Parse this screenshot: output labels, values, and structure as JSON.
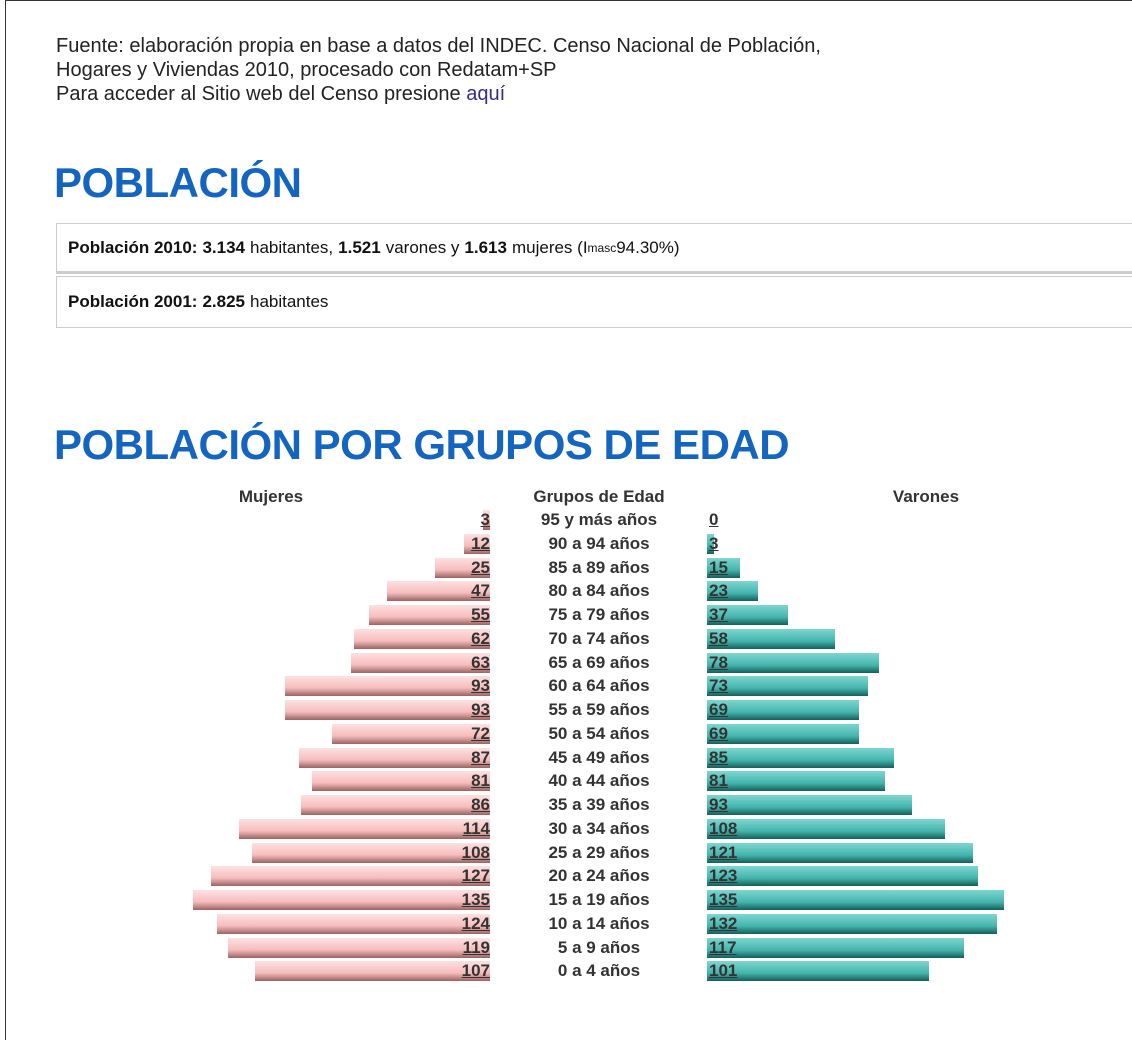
{
  "source": {
    "line1": "Fuente: elaboración propia en base a datos del INDEC. Censo Nacional de Población,",
    "line2": "Hogares y Viviendas 2010, procesado con Redatam+SP",
    "line3": "Para acceder al Sitio web del Censo presione ",
    "link": "aquí"
  },
  "heading1": "POBLACIÓN",
  "box": {
    "row1": {
      "label": "Población 2010:",
      "total": "3.134",
      "t1": "habitantes,",
      "men": "1.521",
      "t2": "varones y",
      "women": "1.613",
      "t3": "mujeres (I",
      "sub": "masc",
      "t4": "94.30%)"
    },
    "row2": {
      "label": "Población 2001:",
      "total": "2.825",
      "t1": "habitantes"
    }
  },
  "heading2": "POBLACIÓN POR GRUPOS DE EDAD",
  "pyramid": {
    "left_title": "Mujeres",
    "center_title": "Grupos de Edad",
    "right_title": "Varones",
    "groups": [
      "95 y más años",
      "90 a 94 años",
      "85 a 89 años",
      "80 a 84 años",
      "75 a 79 años",
      "70 a 74 años",
      "65 a 69 años",
      "60 a 64 años",
      "55 a 59 años",
      "50 a 54 años",
      "45 a 49 años",
      "40 a 44 años",
      "35 a 39 años",
      "30 a 34 años",
      "25 a 29 años",
      "20 a 24 años",
      "15 a 19 años",
      "10 a 14 años",
      "5 a 9 años",
      "0 a 4 años"
    ],
    "women": [
      3,
      12,
      25,
      47,
      55,
      62,
      63,
      93,
      93,
      72,
      87,
      81,
      86,
      114,
      108,
      127,
      135,
      124,
      119,
      107
    ],
    "men": [
      0,
      3,
      15,
      23,
      37,
      58,
      78,
      73,
      69,
      69,
      85,
      81,
      93,
      108,
      121,
      123,
      135,
      132,
      117,
      101
    ]
  }
}
